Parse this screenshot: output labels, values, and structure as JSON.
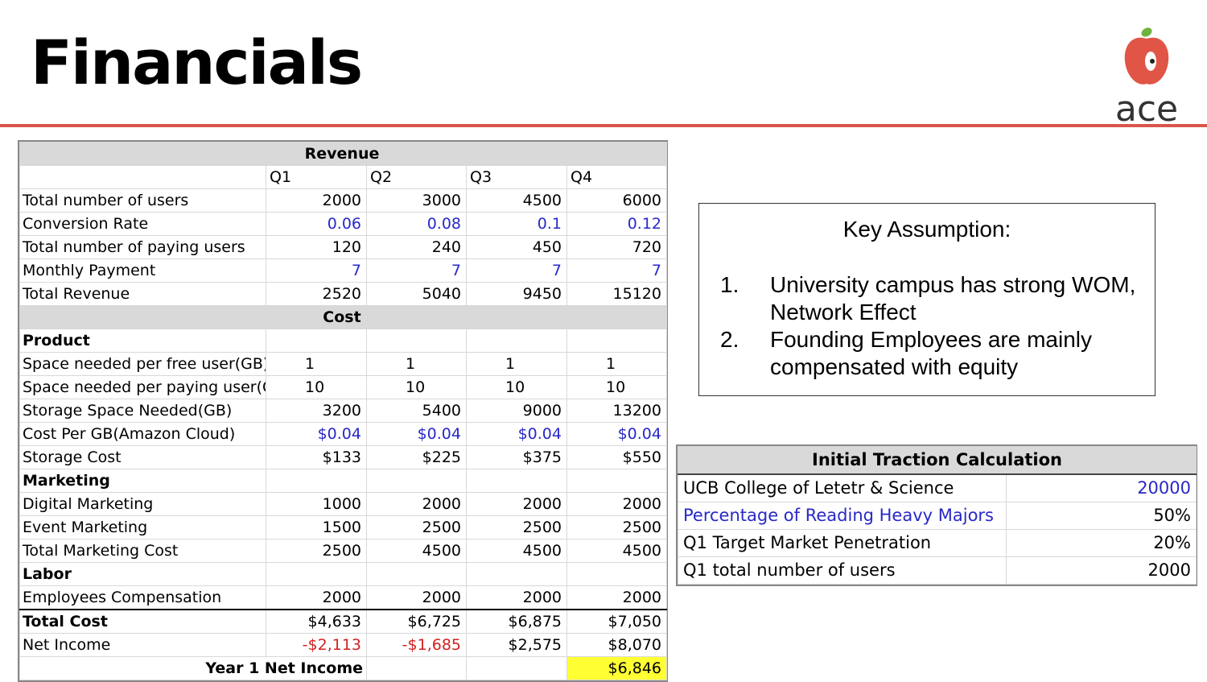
{
  "slide": {
    "title": "Financials"
  },
  "logo": {
    "text": "ace"
  },
  "financials": {
    "revenue_header": "Revenue",
    "quarters": [
      "Q1",
      "Q2",
      "Q3",
      "Q4"
    ],
    "revenue_rows": [
      {
        "label": "Total number of users",
        "values": [
          "2000",
          "3000",
          "4500",
          "6000"
        ]
      },
      {
        "label": "Conversion Rate",
        "values": [
          "0.06",
          "0.08",
          "0.1",
          "0.12"
        ]
      },
      {
        "label": "Total number of paying users",
        "values": [
          "120",
          "240",
          "450",
          "720"
        ]
      },
      {
        "label": "Monthly Payment",
        "values": [
          "7",
          "7",
          "7",
          "7"
        ]
      },
      {
        "label": "Total Revenue",
        "values": [
          "2520",
          "5040",
          "9450",
          "15120"
        ]
      }
    ],
    "cost_header": "Cost",
    "product_label": "Product",
    "product_rows": [
      {
        "label": "Space needed per free user(GB)",
        "values": [
          "1",
          "1",
          "1",
          "1"
        ]
      },
      {
        "label": "Space needed per paying user(G",
        "values": [
          "10",
          "10",
          "10",
          "10"
        ]
      },
      {
        "label": "Storage Space Needed(GB)",
        "values": [
          "3200",
          "5400",
          "9000",
          "13200"
        ]
      },
      {
        "label": "Cost Per GB(Amazon Cloud)",
        "values": [
          "$0.04",
          "$0.04",
          "$0.04",
          "$0.04"
        ]
      },
      {
        "label": "Storage Cost",
        "values": [
          "$133",
          "$225",
          "$375",
          "$550"
        ]
      }
    ],
    "marketing_label": "Marketing",
    "marketing_rows": [
      {
        "label": "Digital Marketing",
        "values": [
          "1000",
          "2000",
          "2000",
          "2000"
        ]
      },
      {
        "label": "Event Marketing",
        "values": [
          "1500",
          "2500",
          "2500",
          "2500"
        ]
      },
      {
        "label": "Total Marketing Cost",
        "values": [
          "2500",
          "4500",
          "4500",
          "4500"
        ]
      }
    ],
    "labor_label": "Labor",
    "labor_rows": [
      {
        "label": "Employees Compensation",
        "values": [
          "2000",
          "2000",
          "2000",
          "2000"
        ]
      }
    ],
    "total_cost": {
      "label": "Total Cost",
      "values": [
        "$4,633",
        "$6,725",
        "$6,875",
        "$7,050"
      ]
    },
    "net_income": {
      "label": "Net Income",
      "values": [
        "-$2,113",
        "-$1,685",
        "$2,575",
        "$8,070"
      ]
    },
    "year1": {
      "label": "Year 1 Net Income",
      "value": "$6,846"
    }
  },
  "key_assumption": {
    "title": "Key Assumption:",
    "items": [
      {
        "num": "1.",
        "text": "University campus has strong WOM, Network Effect"
      },
      {
        "num": "2.",
        "text": "Founding Employees are mainly compensated with equity"
      }
    ]
  },
  "traction": {
    "title": "Initial Traction Calculation",
    "rows": [
      {
        "label": "UCB College of Letetr & Science",
        "value": "20000"
      },
      {
        "label": "Percentage of Reading Heavy Majors",
        "value": "50%"
      },
      {
        "label": "Q1 Target Market Penetration",
        "value": "20%"
      },
      {
        "label": "Q1 total number of users",
        "value": "2000"
      }
    ]
  },
  "colors": {
    "accent_rule": "#d9564a",
    "input_blue": "#2828c8",
    "negative_red": "#d42020",
    "highlight_yellow": "#ffff33"
  }
}
